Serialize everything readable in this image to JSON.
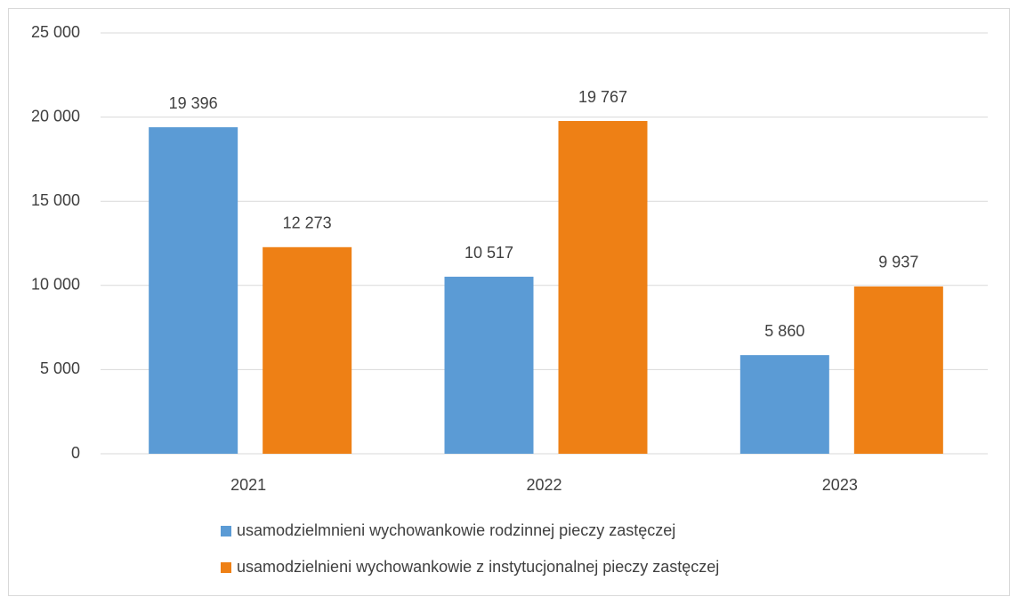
{
  "chart_data": {
    "type": "bar",
    "categories": [
      "2021",
      "2022",
      "2023"
    ],
    "series": [
      {
        "name": "usamodzielmnieni wychowankowie rodzinnej pieczy zastęczej",
        "color": "#5b9bd5",
        "values": [
          19396,
          10517,
          5860
        ],
        "value_labels": [
          "19 396",
          "10 517",
          "5 860"
        ]
      },
      {
        "name": "usamodzielnieni wychowankowie z instytucjonalnej pieczy zastęczej",
        "color": "#ee8015",
        "values": [
          12273,
          19767,
          9937
        ],
        "value_labels": [
          "12 273",
          "19 767",
          "9 937"
        ]
      }
    ],
    "ylim": [
      0,
      25000
    ],
    "yticks": [
      0,
      {
        "value": 5000,
        "label": "5 000"
      },
      {
        "value": 10000,
        "label": "10 000"
      },
      {
        "value": 15000,
        "label": "15 000"
      },
      {
        "value": 20000,
        "label": "20 000"
      },
      {
        "value": 25000,
        "label": "25 000"
      }
    ],
    "grid": true
  }
}
